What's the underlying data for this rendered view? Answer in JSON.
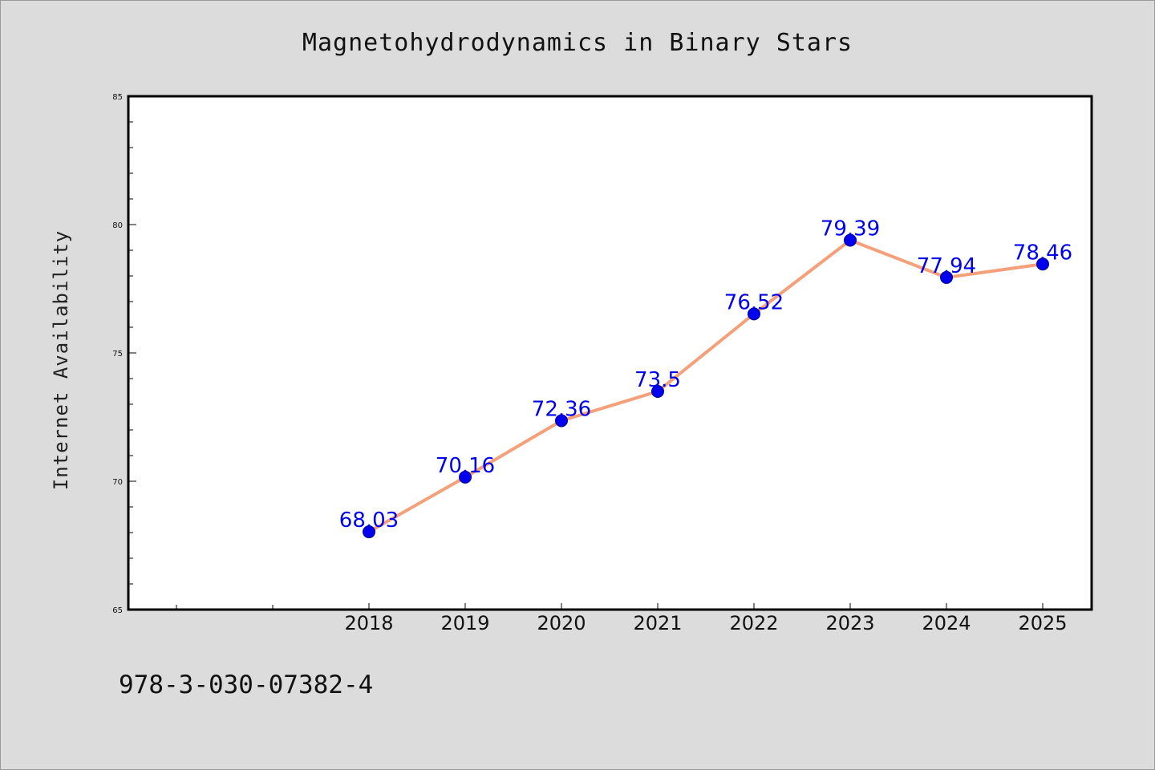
{
  "chart_data": {
    "type": "line",
    "title": "Magnetohydrodynamics in Binary Stars",
    "xlabel": "",
    "ylabel": "Internet Availability",
    "categories": [
      "2018",
      "2019",
      "2020",
      "2021",
      "2022",
      "2023",
      "2024",
      "2025"
    ],
    "series": [
      {
        "values": [
          68.03,
          70.16,
          72.36,
          73.5,
          76.52,
          79.39,
          77.94,
          78.46
        ],
        "data_labels": [
          "68.03",
          "70.16",
          "72.36",
          "73.5",
          "76.52",
          "79.39",
          "77.94",
          "78.46"
        ]
      }
    ],
    "ylim": [
      65,
      85
    ],
    "yticks": [
      "65",
      "70",
      "75",
      "80",
      "85"
    ],
    "grid": false,
    "legend": "none",
    "colors": {
      "line": "#f4a07a",
      "marker": "#0000ee",
      "marker_edge": "#000088",
      "data_label": "#0000ee",
      "plot_background": "#ffffff",
      "figure_background": "#dcdcdc"
    }
  },
  "footer": {
    "isbn": "978-3-030-07382-4"
  }
}
